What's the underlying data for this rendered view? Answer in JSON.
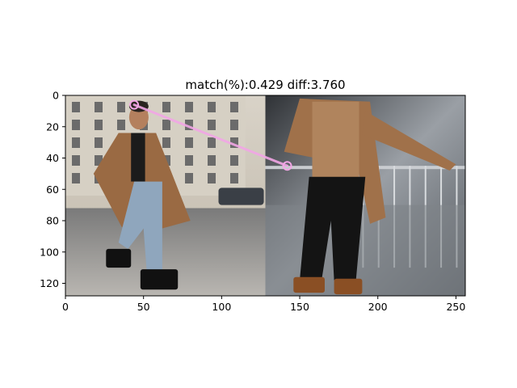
{
  "chart_data": {
    "type": "image",
    "title": "match(%):0.429 diff:3.760",
    "xlim": [
      0,
      256
    ],
    "ylim": [
      128,
      0
    ],
    "x_ticks": [
      0,
      50,
      100,
      150,
      200,
      250
    ],
    "y_ticks": [
      0,
      20,
      40,
      60,
      80,
      100,
      120
    ],
    "grid": false,
    "panels": [
      {
        "name": "left-photo",
        "x_range": [
          0,
          128
        ],
        "y_range": [
          0,
          128
        ]
      },
      {
        "name": "right-photo",
        "x_range": [
          128,
          256
        ],
        "y_range": [
          0,
          128
        ]
      }
    ],
    "match_line": {
      "color": "#f2a6e6",
      "points": [
        {
          "x": 44,
          "y": 6
        },
        {
          "x": 142,
          "y": 45
        }
      ]
    }
  },
  "colors": {
    "axis": "#000000",
    "match": "#f2a6e6"
  }
}
